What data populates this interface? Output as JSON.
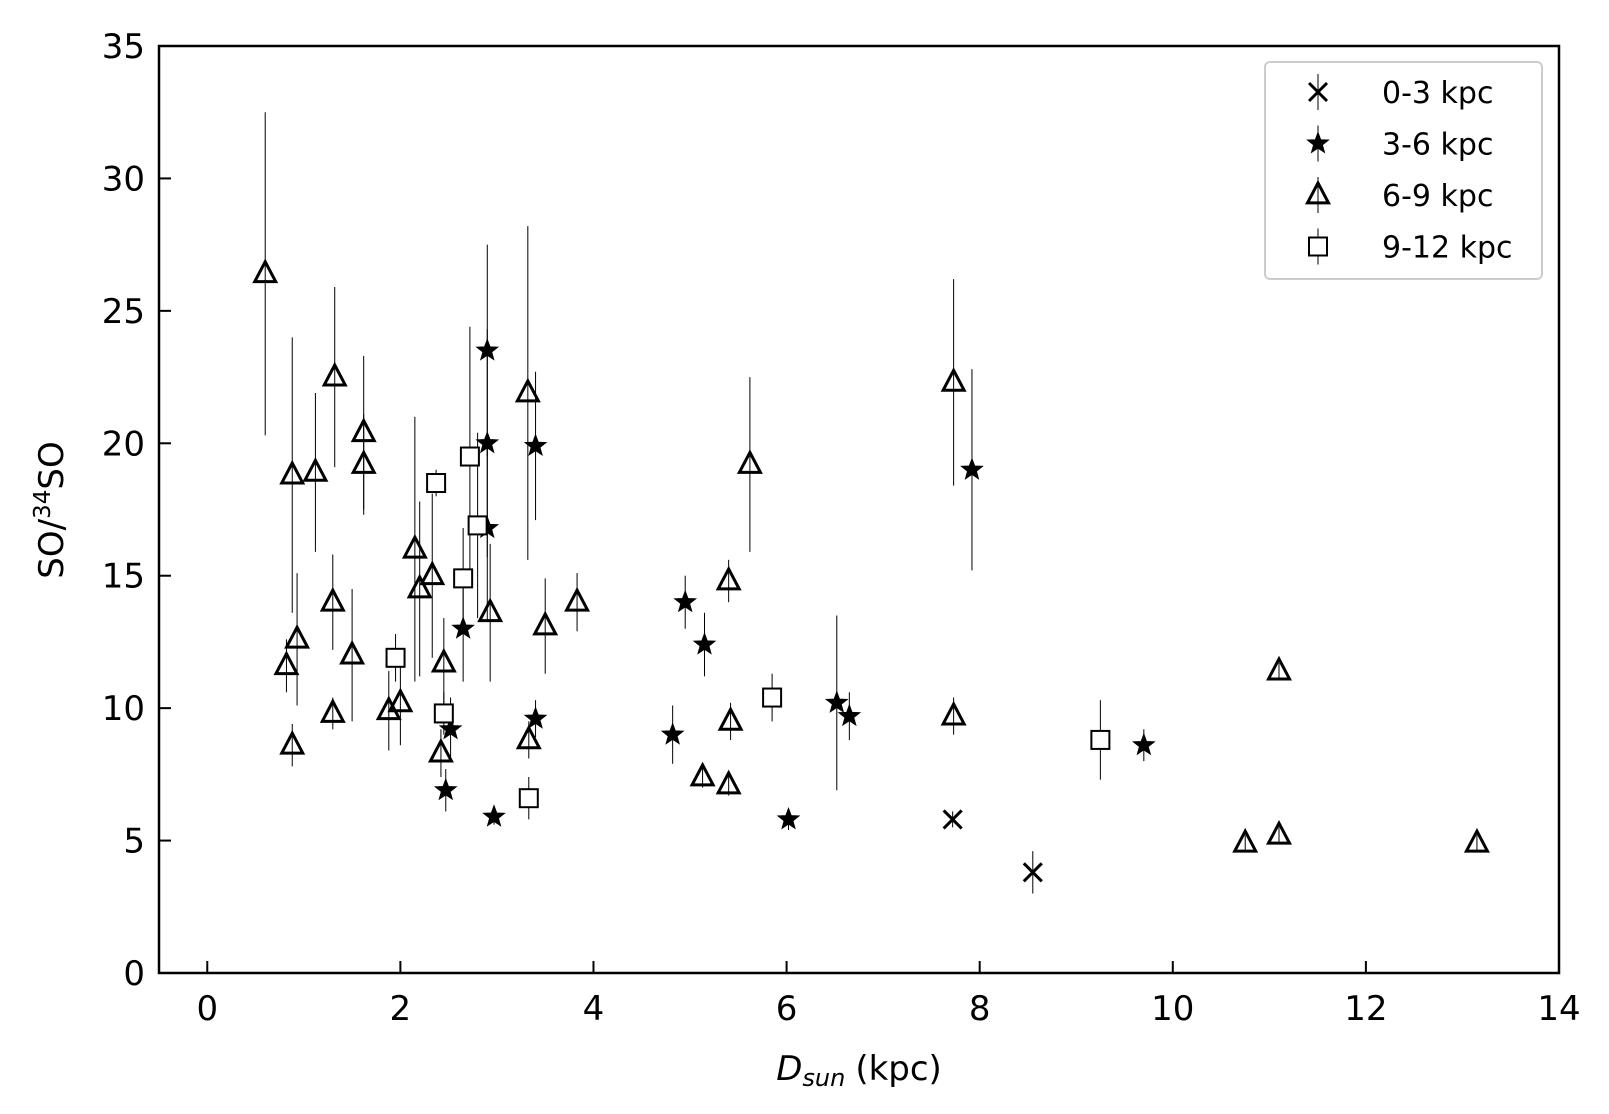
{
  "chart_data": {
    "type": "scatter",
    "xlabel": "D",
    "xlabel_sub": "sun",
    "xlabel_unit": "(kpc)",
    "ylabel_prefix": "SO/",
    "ylabel_sup": "34",
    "ylabel_suffix": "SO",
    "xlim": [
      -0.5,
      14
    ],
    "ylim": [
      0,
      35
    ],
    "xticks": [
      0,
      2,
      4,
      6,
      8,
      10,
      12,
      14
    ],
    "yticks": [
      0,
      5,
      10,
      15,
      20,
      25,
      30,
      35
    ],
    "legend_position": "top-right",
    "series": [
      {
        "name": "0-3 kpc",
        "marker": "x",
        "points": [
          {
            "x": 7.72,
            "y": 5.8,
            "err": 0.3
          },
          {
            "x": 8.55,
            "y": 3.8,
            "err": 0.8
          }
        ]
      },
      {
        "name": "3-6 kpc",
        "marker": "star",
        "points": [
          {
            "x": 2.9,
            "y": 23.5,
            "err": 4.0
          },
          {
            "x": 2.9,
            "y": 20.0,
            "err": 4.3
          },
          {
            "x": 3.4,
            "y": 19.9,
            "err": 2.8
          },
          {
            "x": 2.9,
            "y": 16.8,
            "err": 3.5
          },
          {
            "x": 2.65,
            "y": 13.0,
            "err": 2.0
          },
          {
            "x": 2.52,
            "y": 9.2,
            "err": 1.2
          },
          {
            "x": 3.4,
            "y": 9.6,
            "err": 0.7
          },
          {
            "x": 2.47,
            "y": 6.9,
            "err": 0.8
          },
          {
            "x": 2.97,
            "y": 5.9,
            "err": 0.3
          },
          {
            "x": 4.95,
            "y": 14.0,
            "err": 1.0
          },
          {
            "x": 5.15,
            "y": 12.4,
            "err": 1.2
          },
          {
            "x": 4.82,
            "y": 9.0,
            "err": 1.1
          },
          {
            "x": 6.02,
            "y": 5.8,
            "err": 0.4
          },
          {
            "x": 6.52,
            "y": 10.2,
            "err": 3.3
          },
          {
            "x": 6.65,
            "y": 9.7,
            "err": 0.9
          },
          {
            "x": 7.92,
            "y": 19.0,
            "err": 3.8
          },
          {
            "x": 9.7,
            "y": 8.6,
            "err": 0.6
          }
        ]
      },
      {
        "name": "6-9 kpc",
        "marker": "triangle",
        "points": [
          {
            "x": 0.6,
            "y": 26.4,
            "err": 6.1
          },
          {
            "x": 0.88,
            "y": 18.8,
            "err": 5.2
          },
          {
            "x": 1.12,
            "y": 18.9,
            "err": 3.0
          },
          {
            "x": 1.32,
            "y": 22.5,
            "err": 3.4
          },
          {
            "x": 1.62,
            "y": 20.4,
            "err": 2.9
          },
          {
            "x": 1.62,
            "y": 19.2,
            "err": 1.9
          },
          {
            "x": 0.82,
            "y": 11.6,
            "err": 1.0
          },
          {
            "x": 0.93,
            "y": 12.6,
            "err": 2.5
          },
          {
            "x": 0.88,
            "y": 8.6,
            "err": 0.8
          },
          {
            "x": 1.3,
            "y": 14.0,
            "err": 1.8
          },
          {
            "x": 1.3,
            "y": 9.8,
            "err": 0.6
          },
          {
            "x": 1.5,
            "y": 12.0,
            "err": 2.5
          },
          {
            "x": 1.88,
            "y": 9.9,
            "err": 1.5
          },
          {
            "x": 2.0,
            "y": 10.2,
            "err": 1.6
          },
          {
            "x": 2.15,
            "y": 16.0,
            "err": 5.0
          },
          {
            "x": 2.2,
            "y": 14.5,
            "err": 3.3
          },
          {
            "x": 2.33,
            "y": 15.0,
            "err": 3.1
          },
          {
            "x": 2.45,
            "y": 11.7,
            "err": 1.7
          },
          {
            "x": 2.42,
            "y": 8.3,
            "err": 0.9
          },
          {
            "x": 2.93,
            "y": 13.6,
            "err": 2.6
          },
          {
            "x": 3.32,
            "y": 21.9,
            "err": 6.3
          },
          {
            "x": 3.33,
            "y": 8.8,
            "err": 0.7
          },
          {
            "x": 3.5,
            "y": 13.1,
            "err": 1.8
          },
          {
            "x": 3.83,
            "y": 14.0,
            "err": 1.1
          },
          {
            "x": 5.13,
            "y": 7.4,
            "err": 0.4
          },
          {
            "x": 5.4,
            "y": 14.8,
            "err": 0.8
          },
          {
            "x": 5.42,
            "y": 9.5,
            "err": 0.7
          },
          {
            "x": 5.4,
            "y": 7.1,
            "err": 0.4
          },
          {
            "x": 5.62,
            "y": 19.2,
            "err": 3.3
          },
          {
            "x": 7.73,
            "y": 22.3,
            "err": 3.9
          },
          {
            "x": 7.73,
            "y": 9.7,
            "err": 0.7
          },
          {
            "x": 10.75,
            "y": 4.9,
            "err": 0.3
          },
          {
            "x": 11.1,
            "y": 11.4,
            "err": 0.3
          },
          {
            "x": 11.1,
            "y": 5.2,
            "err": 0.3
          },
          {
            "x": 13.15,
            "y": 4.9,
            "err": 0.3
          }
        ]
      },
      {
        "name": "9-12 kpc",
        "marker": "square",
        "points": [
          {
            "x": 1.95,
            "y": 11.9,
            "err": 0.9
          },
          {
            "x": 2.37,
            "y": 18.5,
            "err": 0.5
          },
          {
            "x": 2.45,
            "y": 9.8,
            "err": 0.8
          },
          {
            "x": 2.65,
            "y": 14.9,
            "err": 1.9
          },
          {
            "x": 2.72,
            "y": 19.5,
            "err": 4.9
          },
          {
            "x": 2.8,
            "y": 16.9,
            "err": 3.5
          },
          {
            "x": 3.33,
            "y": 6.6,
            "err": 0.8
          },
          {
            "x": 5.85,
            "y": 10.4,
            "err": 0.9
          },
          {
            "x": 9.25,
            "y": 8.8,
            "err": 1.5
          }
        ]
      }
    ]
  }
}
